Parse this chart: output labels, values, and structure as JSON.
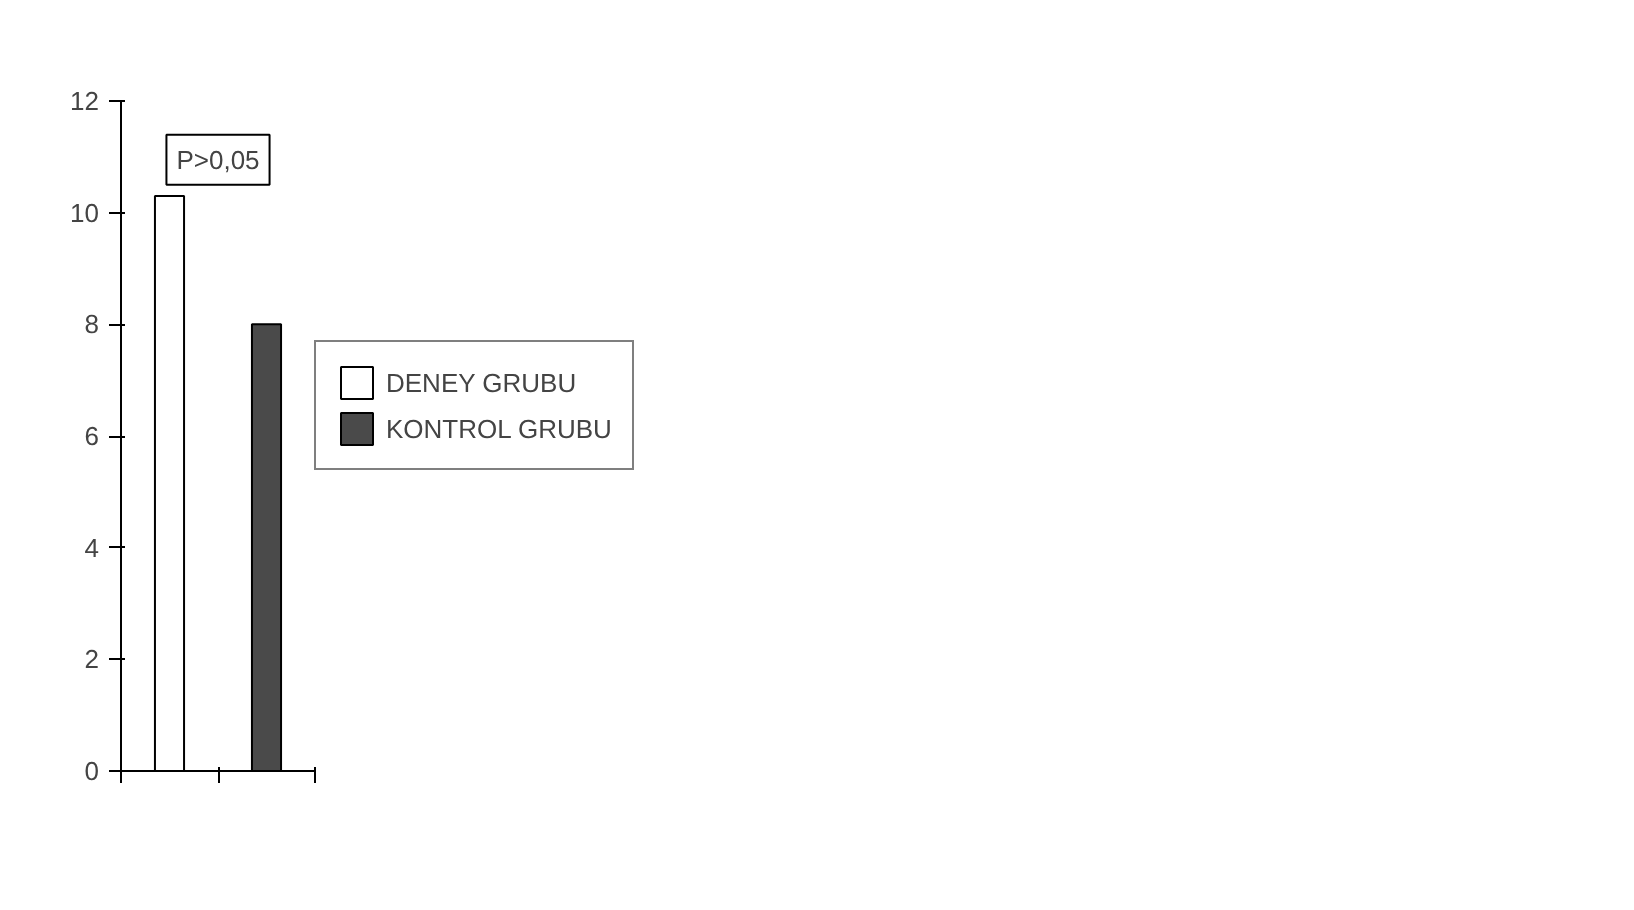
{
  "chart_data": {
    "type": "bar",
    "categories": [
      null,
      null
    ],
    "series": [
      {
        "name": "DENEY GRUBU",
        "color": "#ffffff",
        "values": [
          10.3,
          null
        ]
      },
      {
        "name": "KONTROL GRUBU",
        "color": "#4a4a4a",
        "values": [
          null,
          8.0
        ]
      }
    ],
    "ylim": [
      0,
      12
    ],
    "yticks": [
      0,
      2,
      4,
      6,
      8,
      10,
      12
    ],
    "grid": false,
    "legend": "right",
    "annotations": [
      "P>0,05"
    ]
  }
}
